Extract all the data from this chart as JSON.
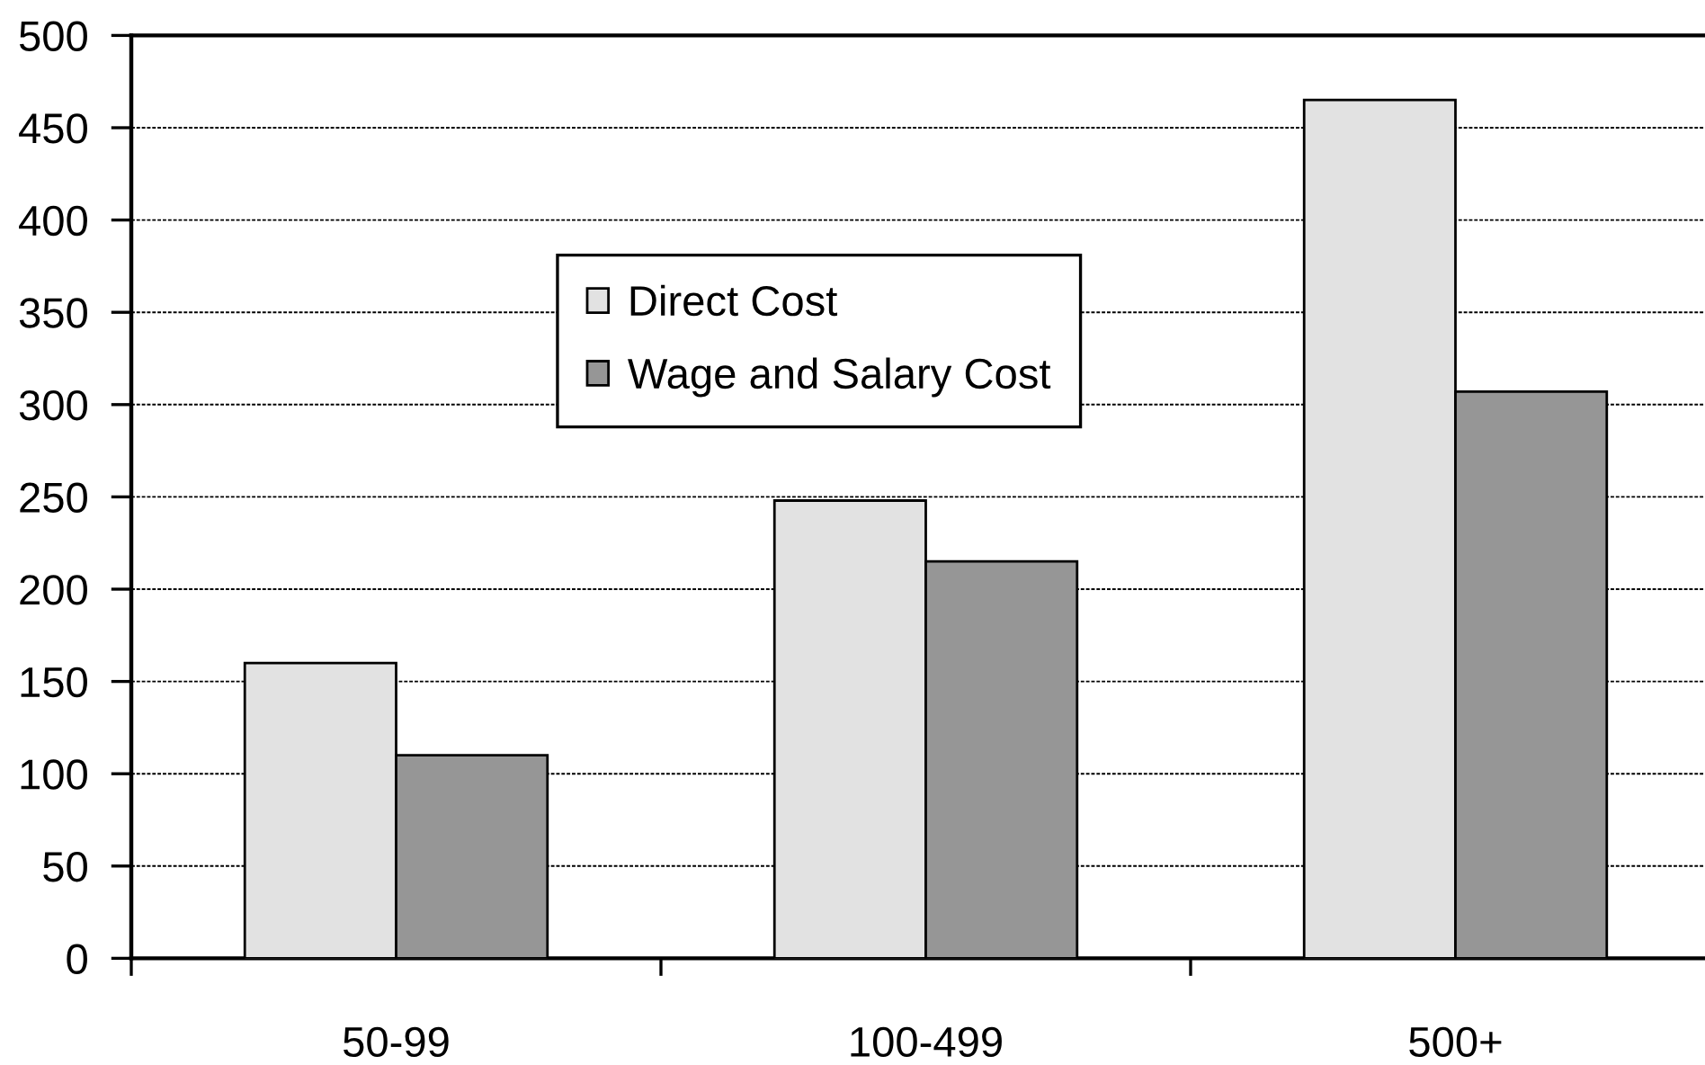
{
  "chart_data": {
    "type": "bar",
    "categories": [
      "50-99",
      "100-499",
      "500+"
    ],
    "series": [
      {
        "name": "Direct Cost",
        "color": "#e2e2e2",
        "values": [
          160,
          248,
          465
        ]
      },
      {
        "name": "Wage and Salary Cost",
        "color": "#969696",
        "values": [
          110,
          215,
          307
        ]
      }
    ],
    "ylim": [
      0,
      500
    ],
    "yticks": [
      0,
      50,
      100,
      150,
      200,
      250,
      300,
      350,
      400,
      450,
      500
    ],
    "grid": "y",
    "legend": "top"
  }
}
